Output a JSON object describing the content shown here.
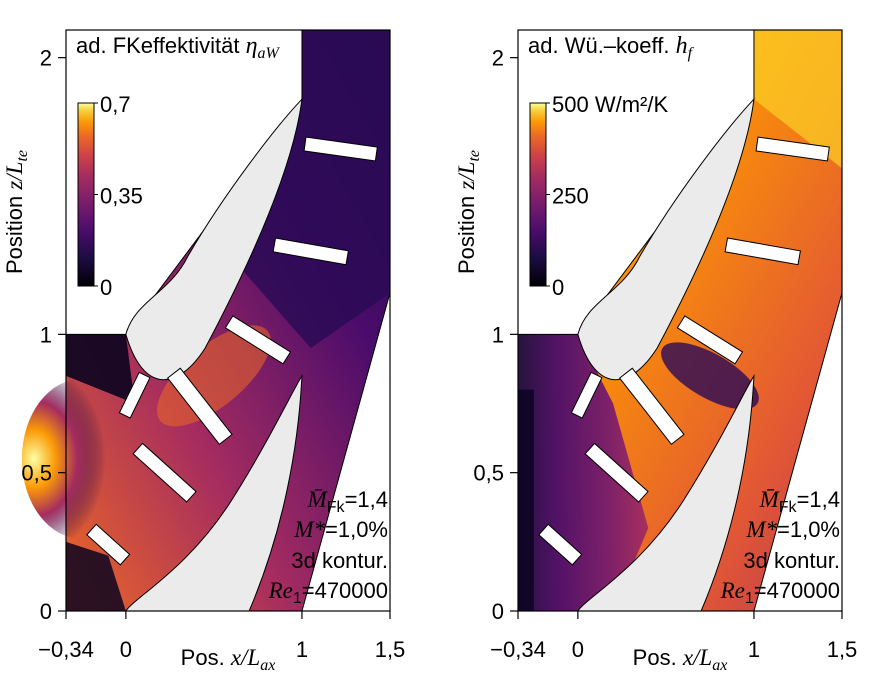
{
  "chart_data": [
    {
      "type": "heatmap",
      "title_text": "ad. FKeffektivität ",
      "title_sym": "η",
      "title_sub": "aW",
      "x_label_prefix": "Pos. ",
      "x_label_sym": "x/L",
      "x_label_sub": "ax",
      "y_label_prefix": "Position ",
      "y_label_sym": "z/L",
      "y_label_sub": "te",
      "x_ticks": [
        "−0,34",
        "0",
        "1",
        "1,5"
      ],
      "x_tick_values": [
        -0.34,
        0,
        1,
        1.5
      ],
      "y_ticks": [
        "0",
        "0,5",
        "1",
        "2"
      ],
      "y_tick_values": [
        0,
        0.5,
        1,
        2
      ],
      "xlim": [
        -0.34,
        1.5
      ],
      "ylim": [
        0,
        2.1
      ],
      "colorbar": {
        "min": 0,
        "max": 0.7,
        "ticks": [
          "0,7",
          "0,35",
          "0"
        ],
        "tick_values": [
          0.7,
          0.35,
          0
        ],
        "colormap": "inferno"
      },
      "annotations": [
        {
          "sym": "M̄",
          "sub": "Fk",
          "rest": "=1,4"
        },
        {
          "sym": "M*",
          "sub": "",
          "rest": "=1,0%"
        },
        {
          "sym": "",
          "sub": "",
          "rest": "3d kontur."
        },
        {
          "sym": "Re",
          "sub": "1",
          "rest": "=470000"
        }
      ],
      "colors": {
        "low": "#000004",
        "mid": "#b73779",
        "high": "#fcffa4"
      }
    },
    {
      "type": "heatmap",
      "title_text": "ad. Wü.–koeff. ",
      "title_sym": "h",
      "title_sub": "f",
      "x_label_prefix": "Pos. ",
      "x_label_sym": "x/L",
      "x_label_sub": "ax",
      "y_label_prefix": "Position ",
      "y_label_sym": "z/L",
      "y_label_sub": "te",
      "x_ticks": [
        "−0,34",
        "0",
        "1",
        "1,5"
      ],
      "x_tick_values": [
        -0.34,
        0,
        1,
        1.5
      ],
      "y_ticks": [
        "0",
        "0,5",
        "1",
        "2"
      ],
      "y_tick_values": [
        0,
        0.5,
        1,
        2
      ],
      "xlim": [
        -0.34,
        1.5
      ],
      "ylim": [
        0,
        2.1
      ],
      "colorbar": {
        "min": 0,
        "max": 500,
        "unit_label": "500 W/m²/K",
        "ticks": [
          "250",
          "0"
        ],
        "tick_values": [
          250,
          0
        ],
        "colormap": "inferno"
      },
      "annotations": [
        {
          "sym": "M̄",
          "sub": "Fk",
          "rest": "=1,4"
        },
        {
          "sym": "M*",
          "sub": "",
          "rest": "=1,0%"
        },
        {
          "sym": "",
          "sub": "",
          "rest": "3d kontur."
        },
        {
          "sym": "Re",
          "sub": "1",
          "rest": "=470000"
        }
      ],
      "colors": {
        "low": "#000004",
        "mid": "#b73779",
        "high": "#fcffa4"
      }
    }
  ]
}
